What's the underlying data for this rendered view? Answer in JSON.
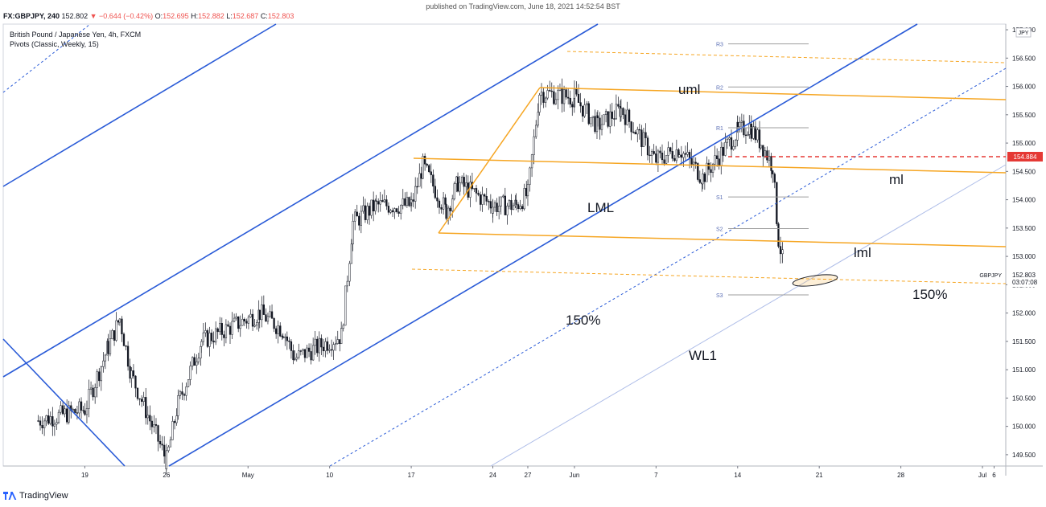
{
  "header": {
    "published": "published on TradingView.com, June 18, 2021 14:52:54 BST",
    "symbol": "FX:GBPJPY, 240",
    "last": "152.802",
    "change": "▼ −0.644 (−0.42%)",
    "o_label": "O:",
    "o": "152.695",
    "h_label": "H:",
    "h": "152.882",
    "l_label": "L:",
    "l": "152.687",
    "c_label": "C:",
    "c": "152.803"
  },
  "legend": {
    "title": "British Pound / Japanese Yen, 4h, FXCM",
    "indicator": "Pivots (Classic, Weekly, 15)"
  },
  "footer": {
    "brand": "TradingView"
  },
  "colors": {
    "pitchfork": "#f6a623",
    "channel": "#2a5bd7",
    "dashed_red": "#e53935",
    "pivot": "#9e9e9e",
    "candle": "#131722",
    "price_badge": "#e53935"
  },
  "chart_data": {
    "type": "candlestick",
    "title": "British Pound / Japanese Yen, 4h, FXCM",
    "currency": "JPY",
    "ylim": [
      149.3,
      157.1
    ],
    "y_ticks": [
      "149.500",
      "150.000",
      "150.500",
      "151.000",
      "151.500",
      "152.000",
      "152.500",
      "153.000",
      "153.500",
      "154.000",
      "154.500",
      "155.000",
      "155.500",
      "156.000",
      "156.500",
      "157.000"
    ],
    "x_ticks": [
      {
        "label": "19",
        "x": "2021-04-19"
      },
      {
        "label": "26",
        "x": "2021-04-26"
      },
      {
        "label": "May",
        "x": "2021-05-03"
      },
      {
        "label": "10",
        "x": "2021-05-10"
      },
      {
        "label": "17",
        "x": "2021-05-17"
      },
      {
        "label": "24",
        "x": "2021-05-24"
      },
      {
        "label": "27",
        "x": "2021-05-27"
      },
      {
        "label": "Jun",
        "x": "2021-05-31"
      },
      {
        "label": "7",
        "x": "2021-06-07"
      },
      {
        "label": "14",
        "x": "2021-06-14"
      },
      {
        "label": "21",
        "x": "2021-06-21"
      },
      {
        "label": "28",
        "x": "2021-06-28"
      },
      {
        "label": "Jul",
        "x": "2021-07-05"
      },
      {
        "label": "6",
        "x": "2021-07-06"
      }
    ],
    "price_marker": {
      "value": "152.803",
      "symbol": "GBPJPY",
      "countdown": "03:07:08"
    },
    "red_marker": {
      "value": "154.884"
    },
    "pivots": [
      {
        "label": "R3",
        "value": 156.75
      },
      {
        "label": "R2",
        "value": 155.99
      },
      {
        "label": "R1",
        "value": 155.27
      },
      {
        "label": "S1",
        "value": 154.05
      },
      {
        "label": "S2",
        "value": 153.49
      },
      {
        "label": "S3",
        "value": 152.32
      }
    ],
    "annotations": [
      {
        "text": "uml"
      },
      {
        "text": "ml"
      },
      {
        "text": "LML"
      },
      {
        "text": "lml"
      },
      {
        "text": "150%"
      },
      {
        "text": "150%"
      },
      {
        "text": "WL1"
      }
    ],
    "candle_anchors": [
      [
        "2021-04-15",
        150.1
      ],
      [
        "2021-04-19",
        150.3
      ],
      [
        "2021-04-21",
        151.4
      ],
      [
        "2021-04-22",
        151.9
      ],
      [
        "2021-04-23",
        150.9
      ],
      [
        "2021-04-26",
        149.4
      ],
      [
        "2021-04-27",
        150.4
      ],
      [
        "2021-04-29",
        151.5
      ],
      [
        "2021-05-04",
        152.0
      ],
      [
        "2021-05-06",
        151.7
      ],
      [
        "2021-05-07",
        151.2
      ],
      [
        "2021-05-11",
        151.6
      ],
      [
        "2021-05-12",
        153.6
      ],
      [
        "2021-05-14",
        153.9
      ],
      [
        "2021-05-17",
        153.9
      ],
      [
        "2021-05-18",
        154.6
      ],
      [
        "2021-05-20",
        153.8
      ],
      [
        "2021-05-21",
        154.3
      ],
      [
        "2021-05-24",
        153.9
      ],
      [
        "2021-05-26",
        153.9
      ],
      [
        "2021-05-27",
        154.1
      ],
      [
        "2021-05-28",
        155.9
      ],
      [
        "2021-05-31",
        155.8
      ],
      [
        "2021-06-02",
        155.3
      ],
      [
        "2021-06-04",
        155.6
      ],
      [
        "2021-06-07",
        154.7
      ],
      [
        "2021-06-09",
        154.9
      ],
      [
        "2021-06-11",
        154.4
      ],
      [
        "2021-06-14",
        155.2
      ],
      [
        "2021-06-15",
        155.3
      ],
      [
        "2021-06-16",
        155.0
      ],
      [
        "2021-06-17",
        154.6
      ],
      [
        "2021-06-17T12",
        153.3
      ],
      [
        "2021-06-18",
        152.8
      ]
    ]
  }
}
